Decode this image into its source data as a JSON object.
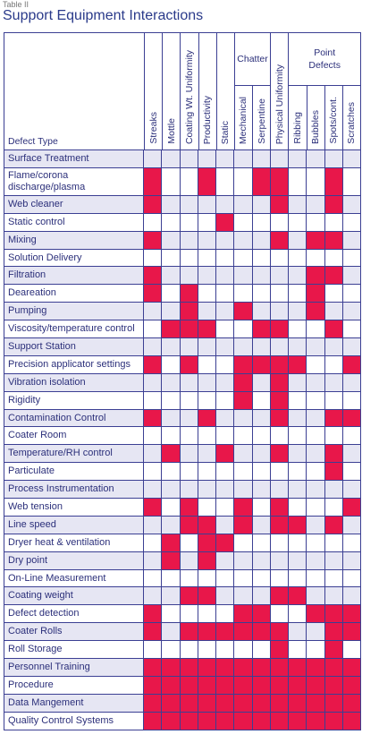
{
  "header": {
    "caption": "Table II",
    "title": "Support Equipment Interactions"
  },
  "table": {
    "row_header": "Defect Type",
    "columns": [
      {
        "label": "Streaks"
      },
      {
        "label": "Mottle"
      },
      {
        "label": "Coating Wt. Uniformity"
      },
      {
        "label": "Productivity"
      },
      {
        "label": "Static"
      },
      {
        "label": "Mechanical",
        "group": "Chatter"
      },
      {
        "label": "Serpentine",
        "group": "Chatter"
      },
      {
        "label": "Physical Uniformity"
      },
      {
        "label": "Ribbing",
        "group": "Point Defects"
      },
      {
        "label": "Bubbles",
        "group": "Point Defects"
      },
      {
        "label": "Spots/cont.",
        "group": "Point Defects"
      },
      {
        "label": "Scratches",
        "group": "Point Defects"
      }
    ],
    "rows": [
      {
        "label": "Surface Treatment",
        "cells": [
          0,
          0,
          0,
          0,
          0,
          0,
          0,
          0,
          0,
          0,
          0,
          0
        ]
      },
      {
        "label": "Flame/corona discharge/plasma",
        "cells": [
          1,
          0,
          0,
          1,
          0,
          0,
          1,
          1,
          0,
          0,
          1,
          0
        ]
      },
      {
        "label": "Web cleaner",
        "cells": [
          1,
          0,
          0,
          0,
          0,
          0,
          0,
          1,
          0,
          0,
          1,
          0
        ]
      },
      {
        "label": "Static control",
        "cells": [
          0,
          0,
          0,
          0,
          1,
          0,
          0,
          0,
          0,
          0,
          0,
          0
        ]
      },
      {
        "label": "Mixing",
        "cells": [
          1,
          0,
          0,
          0,
          0,
          0,
          0,
          1,
          0,
          1,
          1,
          0
        ]
      },
      {
        "label": "Solution Delivery",
        "cells": [
          0,
          0,
          0,
          0,
          0,
          0,
          0,
          0,
          0,
          0,
          0,
          0
        ]
      },
      {
        "label": "Filtration",
        "cells": [
          1,
          0,
          0,
          0,
          0,
          0,
          0,
          0,
          0,
          1,
          1,
          0
        ]
      },
      {
        "label": "Deareation",
        "cells": [
          1,
          0,
          1,
          0,
          0,
          0,
          0,
          0,
          0,
          1,
          0,
          0
        ]
      },
      {
        "label": "Pumping",
        "cells": [
          0,
          0,
          1,
          0,
          0,
          1,
          0,
          0,
          0,
          1,
          0,
          0
        ]
      },
      {
        "label": "Viscosity/temperature control",
        "cells": [
          0,
          1,
          1,
          1,
          0,
          0,
          1,
          1,
          0,
          0,
          1,
          0
        ]
      },
      {
        "label": "Support Station",
        "cells": [
          0,
          0,
          0,
          0,
          0,
          0,
          0,
          0,
          0,
          0,
          0,
          0
        ]
      },
      {
        "label": "Precision applicator settings",
        "cells": [
          1,
          0,
          1,
          0,
          0,
          1,
          1,
          1,
          1,
          0,
          0,
          1
        ]
      },
      {
        "label": "Vibration isolation",
        "cells": [
          0,
          0,
          0,
          0,
          0,
          1,
          0,
          1,
          0,
          0,
          0,
          0
        ]
      },
      {
        "label": "Rigidity",
        "cells": [
          0,
          0,
          0,
          0,
          0,
          1,
          0,
          1,
          0,
          0,
          0,
          0
        ]
      },
      {
        "label": "Contamination Control",
        "cells": [
          1,
          0,
          0,
          1,
          0,
          0,
          0,
          1,
          0,
          0,
          1,
          1
        ]
      },
      {
        "label": "Coater Room",
        "cells": [
          0,
          0,
          0,
          0,
          0,
          0,
          0,
          0,
          0,
          0,
          0,
          0
        ]
      },
      {
        "label": "Temperature/RH control",
        "cells": [
          0,
          1,
          0,
          0,
          1,
          0,
          0,
          1,
          0,
          0,
          1,
          0
        ]
      },
      {
        "label": "Particulate",
        "cells": [
          0,
          0,
          0,
          0,
          0,
          0,
          0,
          0,
          0,
          0,
          1,
          0
        ]
      },
      {
        "label": "Process Instrumentation",
        "cells": [
          0,
          0,
          0,
          0,
          0,
          0,
          0,
          0,
          0,
          0,
          0,
          0
        ]
      },
      {
        "label": "Web tension",
        "cells": [
          1,
          0,
          1,
          0,
          0,
          1,
          0,
          1,
          0,
          0,
          0,
          1
        ]
      },
      {
        "label": "Line speed",
        "cells": [
          0,
          0,
          1,
          1,
          0,
          1,
          0,
          1,
          1,
          0,
          1,
          0
        ]
      },
      {
        "label": "Dryer heat & ventilation",
        "cells": [
          0,
          1,
          0,
          1,
          1,
          0,
          0,
          0,
          0,
          0,
          0,
          0
        ]
      },
      {
        "label": "Dry point",
        "cells": [
          0,
          1,
          0,
          1,
          0,
          0,
          0,
          0,
          0,
          0,
          0,
          0
        ]
      },
      {
        "label": "On-Line Measurement",
        "cells": [
          0,
          0,
          0,
          0,
          0,
          0,
          0,
          0,
          0,
          0,
          0,
          0
        ]
      },
      {
        "label": "Coating weight",
        "cells": [
          0,
          0,
          1,
          1,
          0,
          0,
          0,
          1,
          1,
          0,
          0,
          0
        ]
      },
      {
        "label": "Defect detection",
        "cells": [
          1,
          0,
          0,
          0,
          0,
          1,
          1,
          0,
          0,
          1,
          1,
          1
        ]
      },
      {
        "label": "Coater Rolls",
        "cells": [
          1,
          0,
          1,
          1,
          1,
          1,
          1,
          1,
          0,
          0,
          1,
          1
        ]
      },
      {
        "label": "Roll Storage",
        "cells": [
          0,
          0,
          0,
          0,
          0,
          0,
          0,
          1,
          0,
          0,
          1,
          0
        ]
      },
      {
        "label": "Personnel Training",
        "cells": [
          1,
          1,
          1,
          1,
          1,
          1,
          1,
          1,
          1,
          1,
          1,
          1
        ]
      },
      {
        "label": "Procedure",
        "cells": [
          1,
          1,
          1,
          1,
          1,
          1,
          1,
          1,
          1,
          1,
          1,
          1
        ]
      },
      {
        "label": "Data Mangement",
        "cells": [
          1,
          1,
          1,
          1,
          1,
          1,
          1,
          1,
          1,
          1,
          1,
          1
        ]
      },
      {
        "label": "Quality Control Systems",
        "cells": [
          1,
          1,
          1,
          1,
          1,
          1,
          1,
          1,
          1,
          1,
          1,
          1
        ]
      }
    ]
  }
}
